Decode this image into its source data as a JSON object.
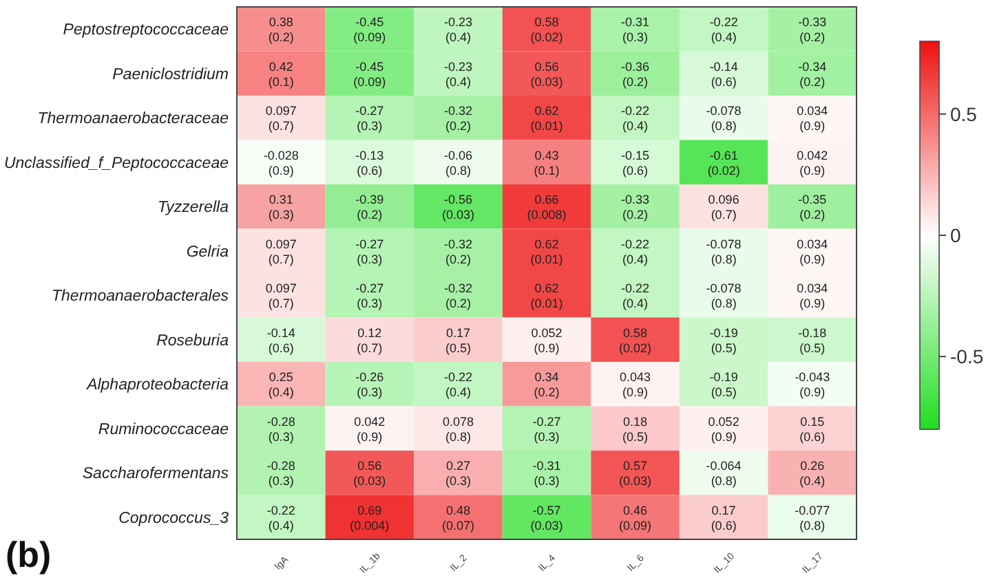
{
  "chart_data": {
    "type": "heatmap",
    "categories": [
      "IgA",
      "IL_1b",
      "IL_2",
      "IL_4",
      "IL_6",
      "IL_10",
      "IL_17"
    ],
    "y_categories": [
      "Peptostreptococcaceae",
      "Paeniclostridium",
      "Thermoanaerobacteraceae",
      "Unclassified_f_Peptococcaceae",
      "Tyzzerella",
      "Gelria",
      "Thermoanaerobacterales",
      "Roseburia",
      "Alphaproteobacteria",
      "Ruminococcaceae",
      "Saccharofermentans",
      "Coprococcus_3"
    ],
    "cells": [
      [
        0.38,
        -0.45,
        -0.23,
        0.58,
        -0.31,
        -0.22,
        -0.33
      ],
      [
        0.42,
        -0.45,
        -0.23,
        0.56,
        -0.36,
        -0.14,
        -0.34
      ],
      [
        0.097,
        -0.27,
        -0.32,
        0.62,
        -0.22,
        -0.078,
        0.034
      ],
      [
        -0.028,
        -0.13,
        -0.06,
        0.43,
        -0.15,
        -0.61,
        0.042
      ],
      [
        0.31,
        -0.39,
        -0.56,
        0.66,
        -0.33,
        0.096,
        -0.35
      ],
      [
        0.097,
        -0.27,
        -0.32,
        0.62,
        -0.22,
        -0.078,
        0.034
      ],
      [
        0.097,
        -0.27,
        -0.32,
        0.62,
        -0.22,
        -0.078,
        0.034
      ],
      [
        -0.14,
        0.12,
        0.17,
        0.052,
        0.58,
        -0.19,
        -0.18
      ],
      [
        0.25,
        -0.26,
        -0.22,
        0.34,
        0.043,
        -0.19,
        -0.043
      ],
      [
        -0.28,
        0.042,
        0.078,
        -0.27,
        0.18,
        0.052,
        0.15
      ],
      [
        -0.28,
        0.56,
        0.27,
        -0.31,
        0.57,
        -0.064,
        0.26
      ],
      [
        -0.22,
        0.69,
        0.48,
        -0.57,
        0.46,
        0.17,
        -0.077
      ]
    ],
    "cell_labels": [
      [
        "0.38\n(0.2)",
        "-0.45\n(0.09)",
        "-0.23\n(0.4)",
        "0.58\n(0.02)",
        "-0.31\n(0.3)",
        "-0.22\n(0.4)",
        "-0.33\n(0.2)"
      ],
      [
        "0.42\n(0.1)",
        "-0.45\n(0.09)",
        "-0.23\n(0.4)",
        "0.56\n(0.03)",
        "-0.36\n(0.2)",
        "-0.14\n(0.6)",
        "-0.34\n(0.2)"
      ],
      [
        "0.097\n(0.7)",
        "-0.27\n(0.3)",
        "-0.32\n(0.2)",
        "0.62\n(0.01)",
        "-0.22\n(0.4)",
        "-0.078\n(0.8)",
        "0.034\n(0.9)"
      ],
      [
        "-0.028\n(0.9)",
        "-0.13\n(0.6)",
        "-0.06\n(0.8)",
        "0.43\n(0.1)",
        "-0.15\n(0.6)",
        "-0.61\n(0.02)",
        "0.042\n(0.9)"
      ],
      [
        "0.31\n(0.3)",
        "-0.39\n(0.2)",
        "-0.56\n(0.03)",
        "0.66\n(0.008)",
        "-0.33\n(0.2)",
        "0.096\n(0.7)",
        "-0.35\n(0.2)"
      ],
      [
        "0.097\n(0.7)",
        "-0.27\n(0.3)",
        "-0.32\n(0.2)",
        "0.62\n(0.01)",
        "-0.22\n(0.4)",
        "-0.078\n(0.8)",
        "0.034\n(0.9)"
      ],
      [
        "0.097\n(0.7)",
        "-0.27\n(0.3)",
        "-0.32\n(0.2)",
        "0.62\n(0.01)",
        "-0.22\n(0.4)",
        "-0.078\n(0.8)",
        "0.034\n(0.9)"
      ],
      [
        "-0.14\n(0.6)",
        "0.12\n(0.7)",
        "0.17\n(0.5)",
        "0.052\n(0.9)",
        "0.58\n(0.02)",
        "-0.19\n(0.5)",
        "-0.18\n(0.5)"
      ],
      [
        "0.25\n(0.4)",
        "-0.26\n(0.3)",
        "-0.22\n(0.4)",
        "0.34\n(0.2)",
        "0.043\n(0.9)",
        "-0.19\n(0.5)",
        "-0.043\n(0.9)"
      ],
      [
        "-0.28\n(0.3)",
        "0.042\n(0.9)",
        "0.078\n(0.8)",
        "-0.27\n(0.3)",
        "0.18\n(0.5)",
        "0.052\n(0.9)",
        "0.15\n(0.6)"
      ],
      [
        "-0.28\n(0.3)",
        "0.56\n(0.03)",
        "0.27\n(0.3)",
        "-0.31\n(0.3)",
        "0.57\n(0.03)",
        "-0.064\n(0.8)",
        "0.26\n(0.4)"
      ],
      [
        "-0.22\n(0.4)",
        "0.69\n(0.004)",
        "0.48\n(0.07)",
        "-0.57\n(0.03)",
        "0.46\n(0.09)",
        "0.17\n(0.6)",
        "-0.077\n(0.8)"
      ]
    ],
    "clim": [
      -0.8,
      0.8
    ],
    "cticks": [
      -0.5,
      0,
      0.5
    ],
    "annotations": [
      "(b)"
    ]
  }
}
